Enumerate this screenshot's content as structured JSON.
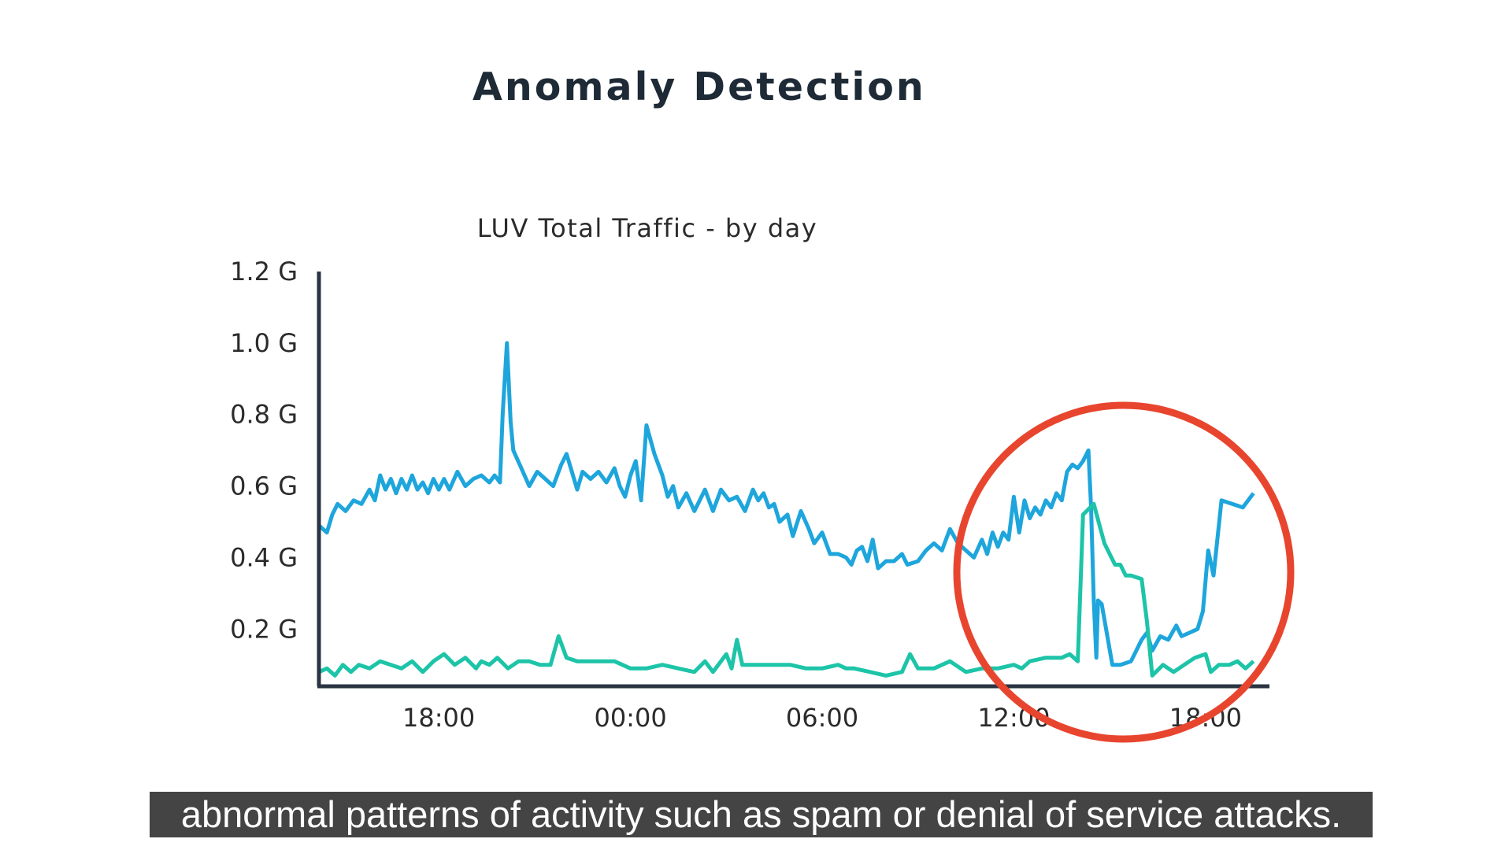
{
  "slide": {
    "title": "Anomaly Detection"
  },
  "caption": {
    "text": "abnormal patterns of activity such as spam or denial of service attacks."
  },
  "highlight": {
    "shape": "circle",
    "color": "#e8452f",
    "marks": "anomaly between 12:00 and 18:00 on the second day"
  },
  "chart_data": {
    "type": "line",
    "title": "LUV Total Traffic  - by day",
    "ylim": [
      0.04,
      1.2
    ],
    "y_ticks": [
      {
        "value": 0.2,
        "label": "0.2 G"
      },
      {
        "value": 0.4,
        "label": "0.4 G"
      },
      {
        "value": 0.6,
        "label": "0.6 G"
      },
      {
        "value": 0.8,
        "label": "0.8 G"
      },
      {
        "value": 1.0,
        "label": "1.0 G"
      },
      {
        "value": 1.2,
        "label": "1.2 G"
      }
    ],
    "xlim": [
      "2000-01-01 14:15",
      "2000-01-02 20:00"
    ],
    "x_ticks": [
      {
        "value": "2000-01-01 18:00",
        "label": "18:00"
      },
      {
        "value": "2000-01-02 00:00",
        "label": "00:00"
      },
      {
        "value": "2000-01-02 06:00",
        "label": "06:00"
      },
      {
        "value": "2000-01-02 12:00",
        "label": "12:00"
      },
      {
        "value": "2000-01-02 18:00",
        "label": "18:00"
      }
    ],
    "grid": false,
    "legend": "none",
    "series": [
      {
        "color": "#1ea6dc",
        "points": [
          [
            "2000-01-01 14:15",
            0.49
          ],
          [
            "2000-01-01 14:30",
            0.47
          ],
          [
            "2000-01-01 14:40",
            0.52
          ],
          [
            "2000-01-01 14:50",
            0.55
          ],
          [
            "2000-01-01 15:05",
            0.53
          ],
          [
            "2000-01-01 15:20",
            0.56
          ],
          [
            "2000-01-01 15:35",
            0.55
          ],
          [
            "2000-01-01 15:50",
            0.59
          ],
          [
            "2000-01-01 16:00",
            0.56
          ],
          [
            "2000-01-01 16:10",
            0.63
          ],
          [
            "2000-01-01 16:20",
            0.59
          ],
          [
            "2000-01-01 16:30",
            0.62
          ],
          [
            "2000-01-01 16:40",
            0.58
          ],
          [
            "2000-01-01 16:50",
            0.62
          ],
          [
            "2000-01-01 17:00",
            0.59
          ],
          [
            "2000-01-01 17:10",
            0.63
          ],
          [
            "2000-01-01 17:20",
            0.59
          ],
          [
            "2000-01-01 17:30",
            0.61
          ],
          [
            "2000-01-01 17:40",
            0.58
          ],
          [
            "2000-01-01 17:50",
            0.62
          ],
          [
            "2000-01-01 18:00",
            0.59
          ],
          [
            "2000-01-01 18:10",
            0.62
          ],
          [
            "2000-01-01 18:20",
            0.59
          ],
          [
            "2000-01-01 18:35",
            0.64
          ],
          [
            "2000-01-01 18:50",
            0.6
          ],
          [
            "2000-01-01 19:05",
            0.62
          ],
          [
            "2000-01-01 19:20",
            0.63
          ],
          [
            "2000-01-01 19:35",
            0.61
          ],
          [
            "2000-01-01 19:45",
            0.63
          ],
          [
            "2000-01-01 19:55",
            0.61
          ],
          [
            "2000-01-01 20:00",
            0.8
          ],
          [
            "2000-01-01 20:08",
            1.0
          ],
          [
            "2000-01-01 20:15",
            0.78
          ],
          [
            "2000-01-01 20:20",
            0.7
          ],
          [
            "2000-01-01 20:35",
            0.65
          ],
          [
            "2000-01-01 20:50",
            0.6
          ],
          [
            "2000-01-01 21:05",
            0.64
          ],
          [
            "2000-01-01 21:20",
            0.62
          ],
          [
            "2000-01-01 21:35",
            0.6
          ],
          [
            "2000-01-01 21:50",
            0.66
          ],
          [
            "2000-01-01 22:00",
            0.69
          ],
          [
            "2000-01-01 22:10",
            0.64
          ],
          [
            "2000-01-01 22:20",
            0.59
          ],
          [
            "2000-01-01 22:30",
            0.64
          ],
          [
            "2000-01-01 22:45",
            0.62
          ],
          [
            "2000-01-01 23:00",
            0.64
          ],
          [
            "2000-01-01 23:15",
            0.61
          ],
          [
            "2000-01-01 23:30",
            0.65
          ],
          [
            "2000-01-01 23:40",
            0.6
          ],
          [
            "2000-01-01 23:50",
            0.57
          ],
          [
            "2000-01-02 00:00",
            0.63
          ],
          [
            "2000-01-02 00:10",
            0.67
          ],
          [
            "2000-01-02 00:20",
            0.56
          ],
          [
            "2000-01-02 00:30",
            0.77
          ],
          [
            "2000-01-02 00:45",
            0.69
          ],
          [
            "2000-01-02 01:00",
            0.63
          ],
          [
            "2000-01-02 01:10",
            0.57
          ],
          [
            "2000-01-02 01:20",
            0.6
          ],
          [
            "2000-01-02 01:30",
            0.54
          ],
          [
            "2000-01-02 01:45",
            0.58
          ],
          [
            "2000-01-02 02:00",
            0.53
          ],
          [
            "2000-01-02 02:10",
            0.56
          ],
          [
            "2000-01-02 02:20",
            0.59
          ],
          [
            "2000-01-02 02:35",
            0.53
          ],
          [
            "2000-01-02 02:50",
            0.59
          ],
          [
            "2000-01-02 03:05",
            0.56
          ],
          [
            "2000-01-02 03:20",
            0.57
          ],
          [
            "2000-01-02 03:35",
            0.53
          ],
          [
            "2000-01-02 03:50",
            0.59
          ],
          [
            "2000-01-02 04:00",
            0.56
          ],
          [
            "2000-01-02 04:10",
            0.58
          ],
          [
            "2000-01-02 04:20",
            0.54
          ],
          [
            "2000-01-02 04:30",
            0.55
          ],
          [
            "2000-01-02 04:40",
            0.5
          ],
          [
            "2000-01-02 04:55",
            0.52
          ],
          [
            "2000-01-02 05:05",
            0.46
          ],
          [
            "2000-01-02 05:20",
            0.53
          ],
          [
            "2000-01-02 05:35",
            0.48
          ],
          [
            "2000-01-02 05:45",
            0.44
          ],
          [
            "2000-01-02 06:00",
            0.47
          ],
          [
            "2000-01-02 06:15",
            0.41
          ],
          [
            "2000-01-02 06:30",
            0.41
          ],
          [
            "2000-01-02 06:45",
            0.4
          ],
          [
            "2000-01-02 06:55",
            0.38
          ],
          [
            "2000-01-02 07:05",
            0.42
          ],
          [
            "2000-01-02 07:15",
            0.43
          ],
          [
            "2000-01-02 07:25",
            0.39
          ],
          [
            "2000-01-02 07:35",
            0.45
          ],
          [
            "2000-01-02 07:45",
            0.37
          ],
          [
            "2000-01-02 08:00",
            0.39
          ],
          [
            "2000-01-02 08:15",
            0.39
          ],
          [
            "2000-01-02 08:30",
            0.41
          ],
          [
            "2000-01-02 08:40",
            0.38
          ],
          [
            "2000-01-02 09:00",
            0.39
          ],
          [
            "2000-01-02 09:15",
            0.42
          ],
          [
            "2000-01-02 09:30",
            0.44
          ],
          [
            "2000-01-02 09:45",
            0.42
          ],
          [
            "2000-01-02 10:00",
            0.48
          ],
          [
            "2000-01-02 10:15",
            0.44
          ],
          [
            "2000-01-02 10:30",
            0.42
          ],
          [
            "2000-01-02 10:45",
            0.4
          ],
          [
            "2000-01-02 11:00",
            0.45
          ],
          [
            "2000-01-02 11:10",
            0.41
          ],
          [
            "2000-01-02 11:20",
            0.47
          ],
          [
            "2000-01-02 11:30",
            0.43
          ],
          [
            "2000-01-02 11:40",
            0.47
          ],
          [
            "2000-01-02 11:50",
            0.45
          ],
          [
            "2000-01-02 12:00",
            0.57
          ],
          [
            "2000-01-02 12:10",
            0.47
          ],
          [
            "2000-01-02 12:20",
            0.56
          ],
          [
            "2000-01-02 12:30",
            0.51
          ],
          [
            "2000-01-02 12:40",
            0.54
          ],
          [
            "2000-01-02 12:50",
            0.52
          ],
          [
            "2000-01-02 13:00",
            0.56
          ],
          [
            "2000-01-02 13:10",
            0.54
          ],
          [
            "2000-01-02 13:20",
            0.58
          ],
          [
            "2000-01-02 13:30",
            0.56
          ],
          [
            "2000-01-02 13:40",
            0.64
          ],
          [
            "2000-01-02 13:50",
            0.66
          ],
          [
            "2000-01-02 14:00",
            0.65
          ],
          [
            "2000-01-02 14:10",
            0.67
          ],
          [
            "2000-01-02 14:20",
            0.7
          ],
          [
            "2000-01-02 14:25",
            0.54
          ],
          [
            "2000-01-02 14:30",
            0.28
          ],
          [
            "2000-01-02 14:35",
            0.12
          ],
          [
            "2000-01-02 14:38",
            0.28
          ],
          [
            "2000-01-02 14:45",
            0.27
          ],
          [
            "2000-01-02 15:05",
            0.1
          ],
          [
            "2000-01-02 15:20",
            0.1
          ],
          [
            "2000-01-02 15:40",
            0.11
          ],
          [
            "2000-01-02 16:00",
            0.17
          ],
          [
            "2000-01-02 16:10",
            0.19
          ],
          [
            "2000-01-02 16:20",
            0.14
          ],
          [
            "2000-01-02 16:35",
            0.18
          ],
          [
            "2000-01-02 16:50",
            0.17
          ],
          [
            "2000-01-02 17:05",
            0.21
          ],
          [
            "2000-01-02 17:15",
            0.18
          ],
          [
            "2000-01-02 17:30",
            0.19
          ],
          [
            "2000-01-02 17:45",
            0.2
          ],
          [
            "2000-01-02 17:55",
            0.25
          ],
          [
            "2000-01-02 18:05",
            0.42
          ],
          [
            "2000-01-02 18:15",
            0.35
          ],
          [
            "2000-01-02 18:30",
            0.56
          ],
          [
            "2000-01-02 18:50",
            0.55
          ],
          [
            "2000-01-02 19:10",
            0.54
          ],
          [
            "2000-01-02 19:30",
            0.58
          ]
        ]
      },
      {
        "color": "#1dc4a8",
        "points": [
          [
            "2000-01-01 14:15",
            0.08
          ],
          [
            "2000-01-01 14:30",
            0.09
          ],
          [
            "2000-01-01 14:45",
            0.07
          ],
          [
            "2000-01-01 15:00",
            0.1
          ],
          [
            "2000-01-01 15:15",
            0.08
          ],
          [
            "2000-01-01 15:30",
            0.1
          ],
          [
            "2000-01-01 15:50",
            0.09
          ],
          [
            "2000-01-01 16:10",
            0.11
          ],
          [
            "2000-01-01 16:30",
            0.1
          ],
          [
            "2000-01-01 16:50",
            0.09
          ],
          [
            "2000-01-01 17:10",
            0.11
          ],
          [
            "2000-01-01 17:30",
            0.08
          ],
          [
            "2000-01-01 17:50",
            0.11
          ],
          [
            "2000-01-01 18:10",
            0.13
          ],
          [
            "2000-01-01 18:30",
            0.1
          ],
          [
            "2000-01-01 18:50",
            0.12
          ],
          [
            "2000-01-01 19:10",
            0.09
          ],
          [
            "2000-01-01 19:20",
            0.11
          ],
          [
            "2000-01-01 19:35",
            0.1
          ],
          [
            "2000-01-01 19:50",
            0.12
          ],
          [
            "2000-01-01 20:10",
            0.09
          ],
          [
            "2000-01-01 20:30",
            0.11
          ],
          [
            "2000-01-01 20:50",
            0.11
          ],
          [
            "2000-01-01 21:10",
            0.1
          ],
          [
            "2000-01-01 21:30",
            0.1
          ],
          [
            "2000-01-01 21:45",
            0.18
          ],
          [
            "2000-01-01 22:00",
            0.12
          ],
          [
            "2000-01-01 22:20",
            0.11
          ],
          [
            "2000-01-01 22:40",
            0.11
          ],
          [
            "2000-01-01 23:00",
            0.11
          ],
          [
            "2000-01-01 23:30",
            0.11
          ],
          [
            "2000-01-02 00:00",
            0.09
          ],
          [
            "2000-01-02 00:30",
            0.09
          ],
          [
            "2000-01-02 01:00",
            0.1
          ],
          [
            "2000-01-02 01:30",
            0.09
          ],
          [
            "2000-01-02 02:00",
            0.08
          ],
          [
            "2000-01-02 02:20",
            0.11
          ],
          [
            "2000-01-02 02:35",
            0.08
          ],
          [
            "2000-01-02 03:00",
            0.13
          ],
          [
            "2000-01-02 03:10",
            0.09
          ],
          [
            "2000-01-02 03:20",
            0.17
          ],
          [
            "2000-01-02 03:30",
            0.1
          ],
          [
            "2000-01-02 04:00",
            0.1
          ],
          [
            "2000-01-02 04:30",
            0.1
          ],
          [
            "2000-01-02 05:00",
            0.1
          ],
          [
            "2000-01-02 05:30",
            0.09
          ],
          [
            "2000-01-02 06:00",
            0.09
          ],
          [
            "2000-01-02 06:30",
            0.1
          ],
          [
            "2000-01-02 06:45",
            0.09
          ],
          [
            "2000-01-02 07:00",
            0.09
          ],
          [
            "2000-01-02 07:30",
            0.08
          ],
          [
            "2000-01-02 08:00",
            0.07
          ],
          [
            "2000-01-02 08:30",
            0.08
          ],
          [
            "2000-01-02 08:45",
            0.13
          ],
          [
            "2000-01-02 09:00",
            0.09
          ],
          [
            "2000-01-02 09:30",
            0.09
          ],
          [
            "2000-01-02 10:00",
            0.11
          ],
          [
            "2000-01-02 10:30",
            0.08
          ],
          [
            "2000-01-02 11:00",
            0.09
          ],
          [
            "2000-01-02 11:30",
            0.09
          ],
          [
            "2000-01-02 12:00",
            0.1
          ],
          [
            "2000-01-02 12:15",
            0.09
          ],
          [
            "2000-01-02 12:30",
            0.11
          ],
          [
            "2000-01-02 13:00",
            0.12
          ],
          [
            "2000-01-02 13:30",
            0.12
          ],
          [
            "2000-01-02 13:45",
            0.13
          ],
          [
            "2000-01-02 14:00",
            0.11
          ],
          [
            "2000-01-02 14:10",
            0.52
          ],
          [
            "2000-01-02 14:30",
            0.55
          ],
          [
            "2000-01-02 14:50",
            0.44
          ],
          [
            "2000-01-02 15:10",
            0.38
          ],
          [
            "2000-01-02 15:20",
            0.38
          ],
          [
            "2000-01-02 15:30",
            0.35
          ],
          [
            "2000-01-02 15:40",
            0.35
          ],
          [
            "2000-01-02 16:00",
            0.34
          ],
          [
            "2000-01-02 16:10",
            0.22
          ],
          [
            "2000-01-02 16:20",
            0.07
          ],
          [
            "2000-01-02 16:40",
            0.1
          ],
          [
            "2000-01-02 17:00",
            0.08
          ],
          [
            "2000-01-02 17:20",
            0.1
          ],
          [
            "2000-01-02 17:40",
            0.12
          ],
          [
            "2000-01-02 18:00",
            0.13
          ],
          [
            "2000-01-02 18:10",
            0.08
          ],
          [
            "2000-01-02 18:25",
            0.1
          ],
          [
            "2000-01-02 18:45",
            0.1
          ],
          [
            "2000-01-02 19:00",
            0.11
          ],
          [
            "2000-01-02 19:15",
            0.09
          ],
          [
            "2000-01-02 19:30",
            0.11
          ]
        ]
      }
    ]
  }
}
